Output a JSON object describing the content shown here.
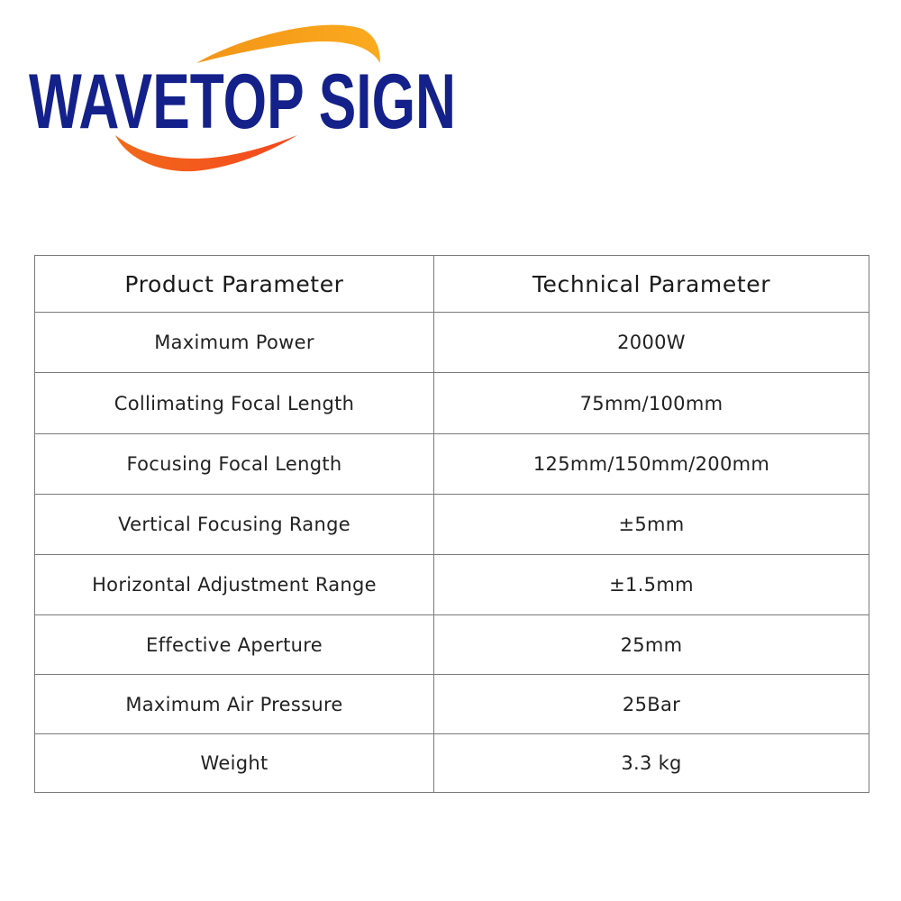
{
  "logo": {
    "text": "WAVETOP SIGN",
    "colors": {
      "text": "#14218a",
      "top_arc": "#f7a21b",
      "bottom_arc": "#f4511e"
    }
  },
  "table": {
    "headers": [
      "Product Parameter",
      "Technical Parameter"
    ],
    "rows": [
      [
        "Maximum Power",
        "2000W"
      ],
      [
        "Collimating Focal Length",
        "75mm/100mm"
      ],
      [
        "Focusing Focal Length",
        "125mm/150mm/200mm"
      ],
      [
        "Vertical Focusing Range",
        "±5mm"
      ],
      [
        "Horizontal Adjustment Range",
        "±1.5mm"
      ],
      [
        "Effective Aperture",
        "25mm"
      ],
      [
        "Maximum Air Pressure",
        "25Bar"
      ],
      [
        "Weight",
        "3.3 kg"
      ]
    ]
  }
}
